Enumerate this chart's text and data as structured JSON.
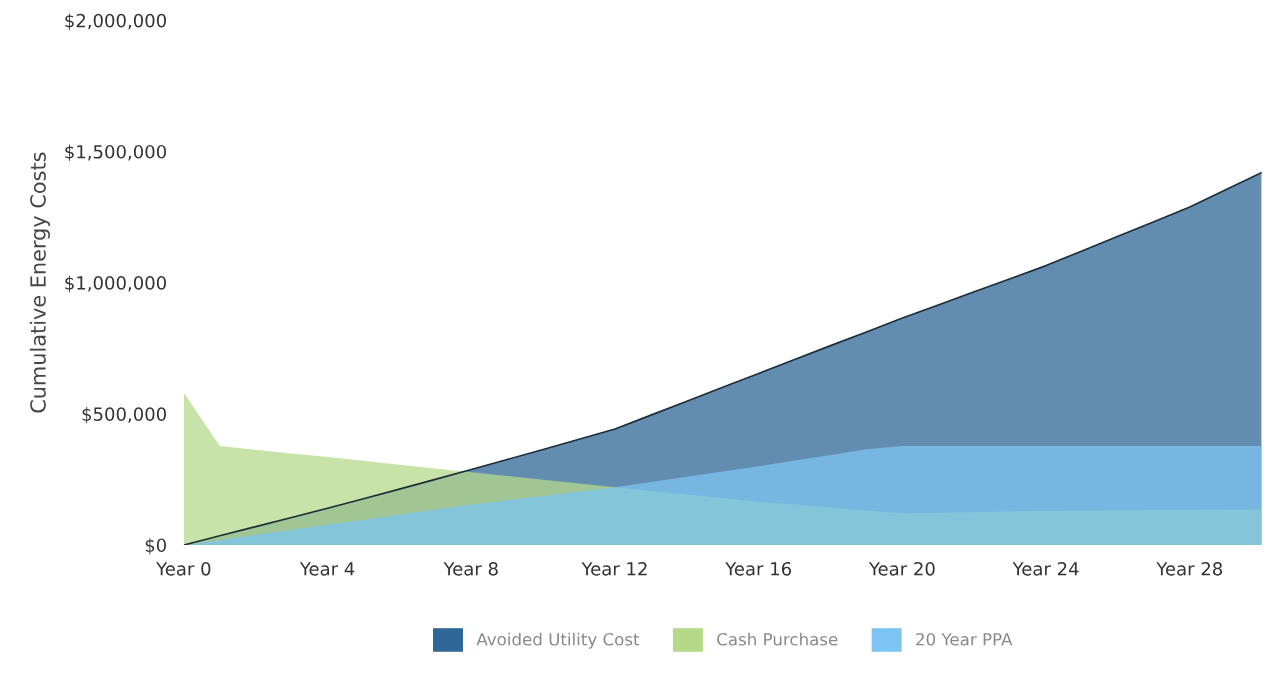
{
  "chart_data": {
    "type": "area",
    "ylabel": "Cumulative Energy Costs",
    "categories": [
      "Year 0",
      null,
      null,
      null,
      "Year 4",
      null,
      null,
      null,
      "Year 8",
      null,
      null,
      null,
      "Year 12",
      null,
      null,
      null,
      "Year 16",
      null,
      null,
      null,
      "Year 20",
      null,
      null,
      null,
      "Year 24",
      null,
      null,
      null,
      "Year 28",
      null,
      null
    ],
    "ylim": [
      0,
      2000000
    ],
    "yticks": [
      {
        "value": 0,
        "label": "$0"
      },
      {
        "value": 500000,
        "label": "$500,000"
      },
      {
        "value": 1000000,
        "label": "$1,000,000"
      },
      {
        "value": 1500000,
        "label": "$1,500,000"
      },
      {
        "value": 2000000,
        "label": "$2,000,000"
      }
    ],
    "grid": false,
    "legend": "bottom",
    "series": [
      {
        "name": "Avoided Utility Cost",
        "color": "#2f6796",
        "values": [
          0,
          35000,
          70000,
          105000,
          140000,
          176000,
          213000,
          250000,
          288000,
          326000,
          364000,
          403000,
          442000,
          495000,
          548000,
          601000,
          654000,
          707000,
          760000,
          812000,
          865000,
          915000,
          965000,
          1015000,
          1065000,
          1121000,
          1177000,
          1232000,
          1288000,
          1354000,
          1420000
        ]
      },
      {
        "name": "Cash Purchase",
        "color": "#b5d98a",
        "values": [
          580000,
          377000,
          363000,
          349000,
          335000,
          321000,
          306000,
          292000,
          277000,
          263000,
          249000,
          234000,
          220000,
          206000,
          192000,
          179000,
          165000,
          154000,
          143000,
          131000,
          120000,
          123000,
          125000,
          128000,
          130000,
          131000,
          132000,
          133000,
          133000,
          134000,
          135000
        ]
      },
      {
        "name": "20 Year PPA",
        "color": "#7cc4f2",
        "values": [
          0,
          19000,
          39000,
          58000,
          77000,
          96000,
          116000,
          135000,
          154000,
          171000,
          187000,
          204000,
          220000,
          240000,
          260000,
          280000,
          300000,
          322000,
          343000,
          365000,
          377000,
          377000,
          377000,
          377000,
          377000,
          377000,
          377000,
          377000,
          377000,
          377000,
          377000
        ]
      }
    ]
  }
}
